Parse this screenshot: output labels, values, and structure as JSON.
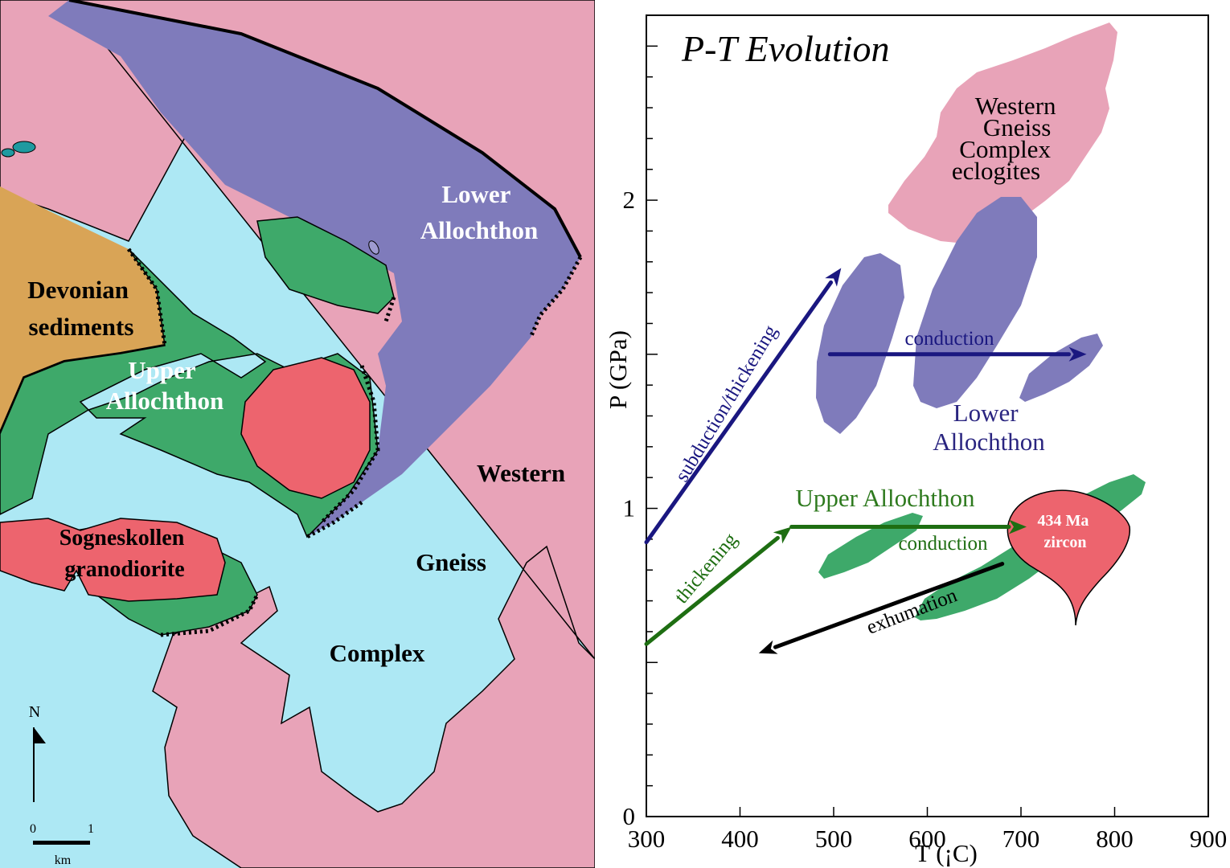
{
  "map": {
    "labels": {
      "lower_allochthon": [
        "Lower",
        "Allochthon"
      ],
      "devonian": [
        "Devonian",
        "sediments"
      ],
      "upper_allochthon": [
        "Upper",
        "Allochthon"
      ],
      "wgc": [
        "Western",
        "Gneiss",
        "Complex"
      ],
      "sogneskollen": [
        "Sogneskollen",
        "granodiorite"
      ]
    },
    "north_label": "N",
    "scale": {
      "start": "0",
      "end": "1",
      "unit": "km"
    },
    "colors": {
      "sea": "#ade8f4",
      "wgc": "#e8a3b8",
      "lower_allochthon": "#7f7bbb",
      "upper_allochthon": "#3ea96a",
      "devonian": "#d9a456",
      "granodiorite": "#ed646e",
      "islet": "#1f9aa0"
    }
  },
  "chart_data": {
    "type": "diagram",
    "title": "P-T Evolution",
    "xlabel": "T (¡C)",
    "ylabel": "P  (GPa)",
    "xlim": [
      300,
      900
    ],
    "ylim": [
      0,
      2.6
    ],
    "x_ticks": [
      "300",
      "400",
      "500",
      "600",
      "700",
      "800",
      "900"
    ],
    "y_ticks": [
      "0",
      "1",
      "2"
    ],
    "fields": [
      {
        "name": "Western Gneiss Complex eclogites",
        "label_lines": [
          "Western",
          "Gneiss",
          "Complex",
          "eclogites"
        ],
        "color": "#e8a3b8"
      },
      {
        "name": "Lower Allochthon",
        "label_lines": [
          "Lower",
          "Allochthon"
        ],
        "color": "#7f7bbb",
        "label_color": "#2a2580"
      },
      {
        "name": "Upper Allochthon",
        "label_lines": [
          "Upper Allochthon"
        ],
        "color": "#3ea96a",
        "label_color": "#2e7a1e"
      }
    ],
    "zircon": {
      "label_lines": [
        "434 Ma",
        "zircon"
      ],
      "color": "#ed646e"
    },
    "paths": [
      {
        "label": "subduction/thickening",
        "color": "#1a1780",
        "from": [
          300,
          0.89
        ],
        "to": [
          508,
          1.78
        ]
      },
      {
        "label": "conduction",
        "color": "#1a1780",
        "from": [
          496,
          1.5
        ],
        "to": [
          770,
          1.5
        ]
      },
      {
        "label": "thickening",
        "color": "#1e6e12",
        "from": [
          300,
          0.56
        ],
        "to": [
          455,
          0.94
        ]
      },
      {
        "label": "conduction",
        "color": "#1e6e12",
        "from": [
          455,
          0.94
        ],
        "to": [
          706,
          0.94
        ]
      },
      {
        "label": "exhumation",
        "color": "#000000",
        "from": [
          680,
          0.82
        ],
        "to": [
          420,
          0.53
        ]
      }
    ]
  }
}
